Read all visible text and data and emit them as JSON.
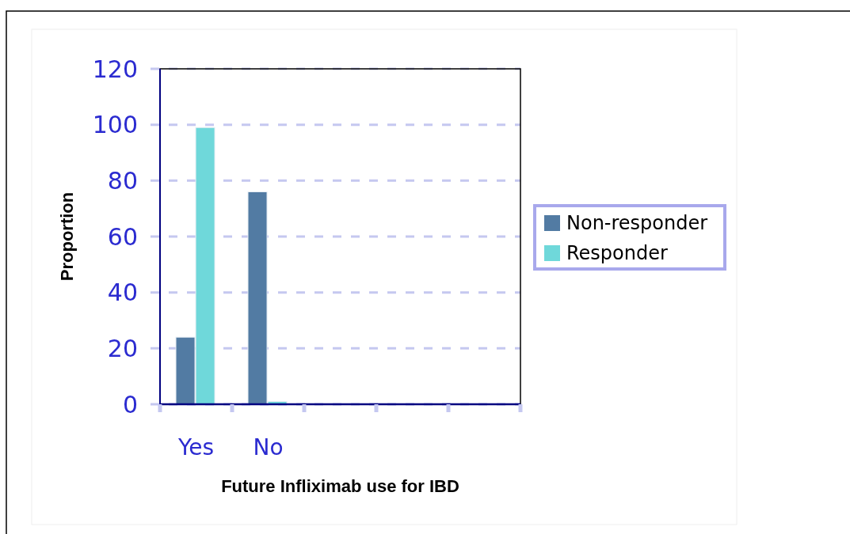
{
  "chart_data": {
    "type": "bar",
    "xlabel": "Future Infliximab use for IBD",
    "ylabel": "Proportion",
    "categories": [
      "Yes",
      "No",
      null,
      null,
      null
    ],
    "series": [
      {
        "name": "Non-responder",
        "color": "#527ba3",
        "values": [
          24,
          76,
          null,
          null,
          null
        ]
      },
      {
        "name": "Responder",
        "color": "#6fd8da",
        "values": [
          99,
          1,
          null,
          null,
          null
        ]
      }
    ],
    "ylim": [
      0,
      120
    ],
    "yticks": [
      0,
      20,
      40,
      60,
      80,
      100,
      120
    ],
    "grid": "y",
    "legend": "right"
  }
}
